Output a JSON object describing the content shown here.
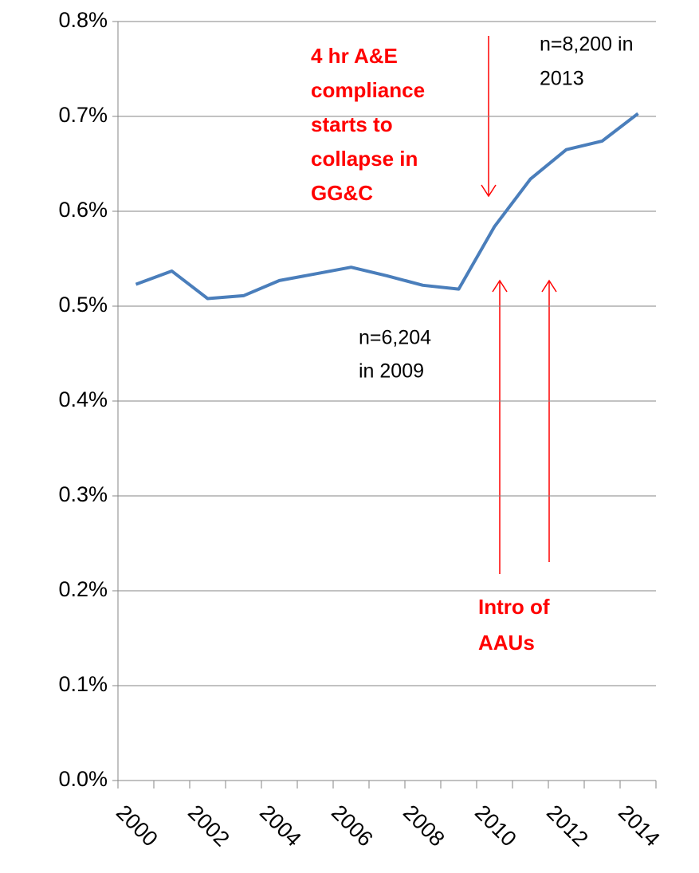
{
  "chart_data": {
    "type": "line",
    "categories": [
      "2000",
      null,
      "2002",
      null,
      "2004",
      null,
      "2006",
      null,
      "2008",
      null,
      "2010",
      null,
      "2012",
      null,
      "2014"
    ],
    "series": [
      {
        "color": "#4a7ebb",
        "values": [
          0.523,
          0.537,
          0.508,
          0.511,
          0.527,
          0.534,
          0.541,
          0.532,
          0.522,
          0.518,
          0.584,
          0.634,
          0.665,
          0.674,
          0.703
        ]
      }
    ],
    "ylim": [
      0,
      0.8
    ],
    "yticks": [
      {
        "value": 0,
        "label": "0.0%"
      },
      {
        "value": 0.1,
        "label": "0.1%"
      },
      {
        "value": 0.2,
        "label": "0.2%"
      },
      {
        "value": 0.3,
        "label": "0.3%"
      },
      {
        "value": 0.4,
        "label": "0.4%"
      },
      {
        "value": 0.5,
        "label": "0.5%"
      },
      {
        "value": 0.6,
        "label": "0.6%"
      },
      {
        "value": 0.7,
        "label": "0.7%"
      },
      {
        "value": 0.8,
        "label": "0.8%"
      }
    ],
    "grid": true,
    "annotations": [
      {
        "lines": [
          "4 hr A&E",
          "compliance",
          "starts to",
          "collapse in",
          "GG&C"
        ],
        "color": "#ff0000"
      },
      {
        "lines": [
          "n=8,200 in",
          "2013"
        ]
      },
      {
        "lines": [
          "n=6,204",
          "in 2009"
        ]
      },
      {
        "lines": [
          "Intro of",
          "AAUs"
        ],
        "color": "#ff0000"
      }
    ]
  }
}
